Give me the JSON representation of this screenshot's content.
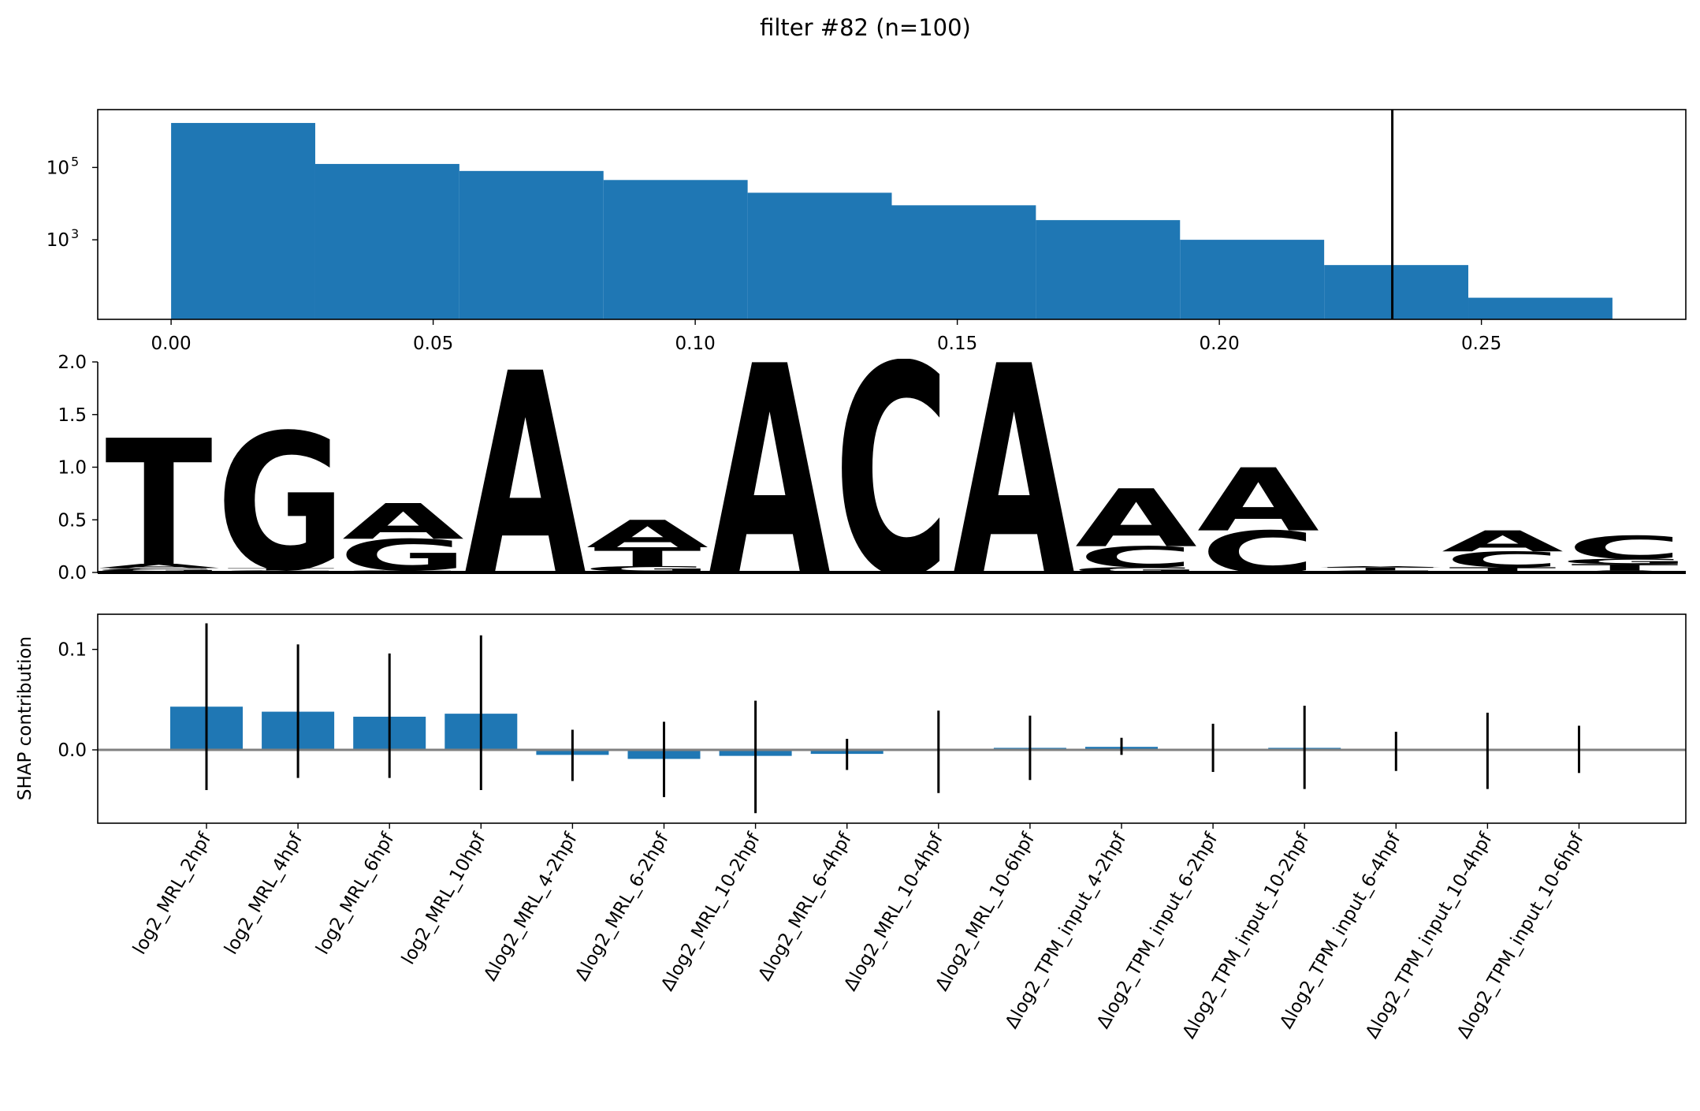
{
  "figure": {
    "title": "filter #82 (n=100)"
  },
  "chart_data": [
    {
      "type": "bar",
      "subtype": "histogram",
      "yscale": "log",
      "bin_edges": [
        0.0,
        0.0275,
        0.055,
        0.0825,
        0.11,
        0.1375,
        0.165,
        0.1925,
        0.22,
        0.2475,
        0.275
      ],
      "counts": [
        1700000,
        125000,
        80000,
        45000,
        20000,
        9000,
        3500,
        1000,
        200,
        25
      ],
      "vline_x": 0.233,
      "xlim": [
        -0.014,
        0.289
      ],
      "ylim_exp": [
        0.8,
        6.6
      ],
      "xticks": [
        "0.00",
        "0.05",
        "0.10",
        "0.15",
        "0.20",
        "0.25"
      ],
      "xtick_values": [
        0.0,
        0.05,
        0.1,
        0.15,
        0.2,
        0.25
      ],
      "yticks": [
        {
          "base": "10",
          "exp": "5",
          "value": 5
        },
        {
          "base": "10",
          "exp": "3",
          "value": 3
        }
      ],
      "bar_color": "#1f77b4",
      "vline_color": "#000000"
    },
    {
      "type": "sequence-logo",
      "ylim": [
        0,
        2.0
      ],
      "yticks": [
        "0.0",
        "0.5",
        "1.0",
        "1.5",
        "2.0"
      ],
      "ytick_values": [
        0,
        0.5,
        1.0,
        1.5,
        2.0
      ],
      "colors": {
        "A": "#0d9648",
        "C": "#263fa0",
        "G": "#f5b22a",
        "T": "#e8253a"
      },
      "positions": [
        [
          [
            "T",
            0.012
          ],
          [
            "G",
            0.02
          ],
          [
            "C",
            0.01
          ],
          [
            "A",
            0.04
          ],
          [
            "T",
            1.2
          ]
        ],
        [
          [
            "A",
            0.01
          ],
          [
            "C",
            0.01
          ],
          [
            "T",
            0.02
          ],
          [
            "G",
            1.3
          ]
        ],
        [
          [
            "T",
            0.01
          ],
          [
            "C",
            0.01
          ],
          [
            "G",
            0.3
          ],
          [
            "A",
            0.34
          ]
        ],
        [
          [
            "A",
            1.93
          ]
        ],
        [
          [
            "C",
            0.01
          ],
          [
            "G",
            0.05
          ],
          [
            "T",
            0.18
          ],
          [
            "A",
            0.26
          ]
        ],
        [
          [
            "A",
            2.0
          ]
        ],
        [
          [
            "C",
            2.0
          ]
        ],
        [
          [
            "A",
            2.0
          ]
        ],
        [
          [
            "G",
            0.05
          ],
          [
            "C",
            0.2
          ],
          [
            "A",
            0.55
          ]
        ],
        [
          [
            "C",
            0.4
          ],
          [
            "A",
            0.6
          ]
        ],
        [
          [
            "C",
            0.02
          ],
          [
            "T",
            0.03
          ],
          [
            "A",
            0.01
          ]
        ],
        [
          [
            "T",
            0.05
          ],
          [
            "C",
            0.15
          ],
          [
            "A",
            0.2
          ]
        ],
        [
          [
            "A",
            0.02
          ],
          [
            "T",
            0.06
          ],
          [
            "G",
            0.05
          ],
          [
            "C",
            0.22
          ]
        ]
      ]
    },
    {
      "type": "bar",
      "subtype": "errorbar",
      "ylabel": "SHAP contribution",
      "ylim": [
        -0.073,
        0.135
      ],
      "yticks": [
        "0.0",
        "0.1"
      ],
      "ytick_values": [
        0.0,
        0.1
      ],
      "bar_color": "#1f77b4",
      "zero_line_color": "#808080",
      "categories": [
        "log2_MRL_2hpf",
        "log2_MRL_4hpf",
        "log2_MRL_6hpf",
        "log2_MRL_10hpf",
        "Δlog2_MRL_4-2hpf",
        "Δlog2_MRL_6-2hpf",
        "Δlog2_MRL_10-2hpf",
        "Δlog2_MRL_6-4hpf",
        "Δlog2_MRL_10-4hpf",
        "Δlog2_MRL_10-6hpf",
        "Δlog2_TPM_input_4-2hpf",
        "Δlog2_TPM_input_6-2hpf",
        "Δlog2_TPM_input_10-2hpf",
        "Δlog2_TPM_input_6-4hpf",
        "Δlog2_TPM_input_10-4hpf",
        "Δlog2_TPM_input_10-6hpf"
      ],
      "values": [
        0.043,
        0.038,
        0.033,
        0.036,
        -0.005,
        -0.009,
        -0.006,
        -0.004,
        -0.001,
        0.002,
        0.003,
        -0.001,
        0.002,
        -0.001,
        -0.001,
        -0.001
      ],
      "err_low": [
        -0.04,
        -0.028,
        -0.028,
        -0.04,
        -0.031,
        -0.047,
        -0.063,
        -0.02,
        -0.043,
        -0.03,
        -0.005,
        -0.022,
        -0.039,
        -0.021,
        -0.039,
        -0.023
      ],
      "err_high": [
        0.126,
        0.105,
        0.096,
        0.114,
        0.02,
        0.028,
        0.049,
        0.011,
        0.039,
        0.034,
        0.012,
        0.026,
        0.044,
        0.018,
        0.037,
        0.024
      ]
    }
  ]
}
